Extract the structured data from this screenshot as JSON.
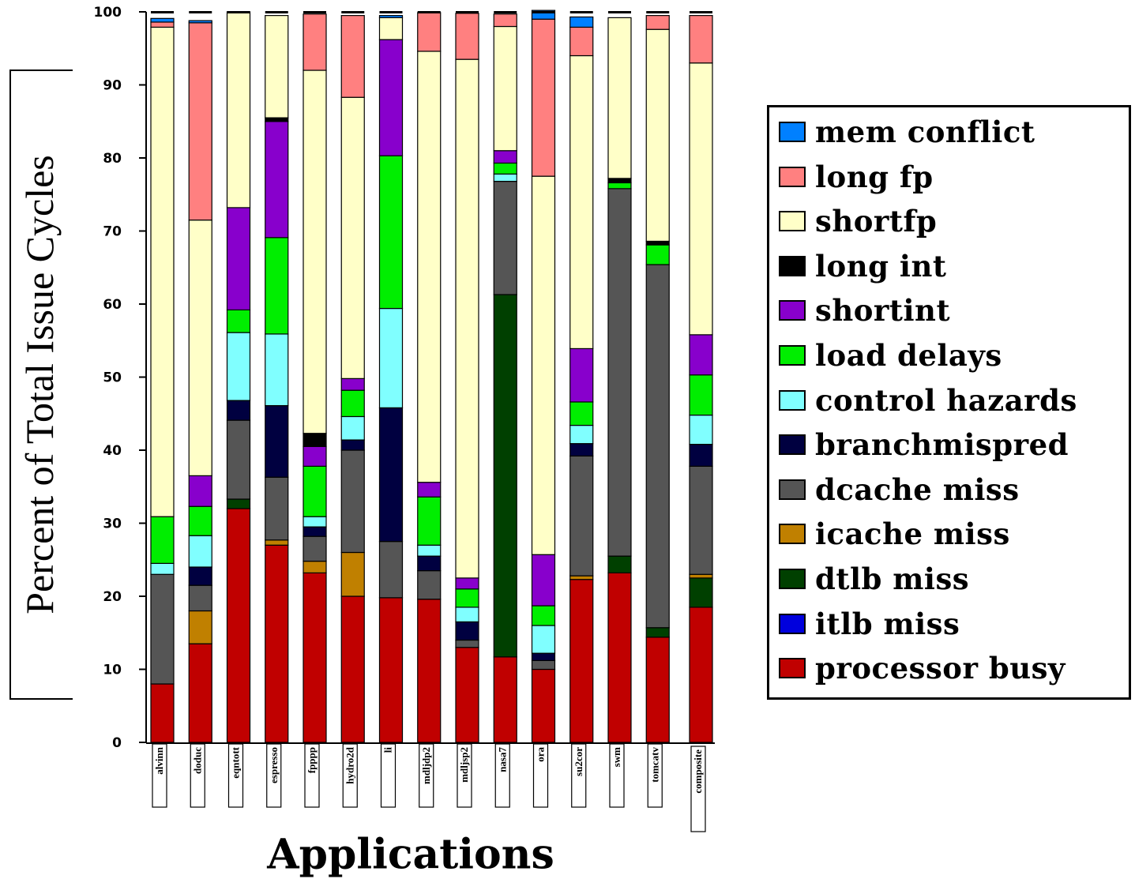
{
  "chart_data": {
    "type": "bar",
    "stacked": true,
    "xlabel": "Applications",
    "ylabel": "Percent of Total Issue Cycles",
    "ylim": [
      0,
      100
    ],
    "yticks": [
      "0",
      "10",
      "20",
      "30",
      "40",
      "50",
      "60",
      "70",
      "80",
      "90",
      "100"
    ],
    "legend_position": "right",
    "categories": [
      "alvinn",
      "doduc",
      "eqntott",
      "espresso",
      "fpppp",
      "hydro2d",
      "li",
      "mdljdp2",
      "mdljsp2",
      "nasa7",
      "ora",
      "su2cor",
      "swm",
      "tomcatv",
      "composite"
    ],
    "series": [
      {
        "name": "processor busy",
        "color": "#c00000",
        "values": [
          8,
          13.5,
          32,
          27,
          23.2,
          20,
          19.8,
          19.6,
          13,
          11.7,
          10,
          22.3,
          23.2,
          14.4,
          18.5
        ]
      },
      {
        "name": "itlb miss",
        "color": "#0000dd",
        "values": [
          0,
          0,
          0,
          0,
          0,
          0,
          0,
          0,
          0,
          0,
          0,
          0,
          0,
          0,
          0
        ]
      },
      {
        "name": "dtlb miss",
        "color": "#004000",
        "values": [
          0,
          0,
          1.3,
          0,
          0,
          0,
          0,
          0,
          0,
          49.6,
          0,
          0,
          2.3,
          1.3,
          4
        ]
      },
      {
        "name": "icache miss",
        "color": "#c08000",
        "values": [
          0,
          4.5,
          0,
          0.7,
          1.6,
          6,
          0,
          0,
          0,
          0,
          0,
          0.5,
          0,
          0,
          0.5
        ]
      },
      {
        "name": "dcache miss",
        "color": "#555555",
        "values": [
          15,
          3.5,
          10.8,
          8.6,
          3.4,
          14,
          7.7,
          3.9,
          1,
          15.5,
          1.2,
          16.4,
          50.3,
          49.7,
          14.8
        ]
      },
      {
        "name": "branchmispred",
        "color": "#000040",
        "values": [
          0,
          2.5,
          2.7,
          9.8,
          1.3,
          1.4,
          18.3,
          2,
          2.5,
          0,
          1,
          1.7,
          0,
          0,
          3
        ]
      },
      {
        "name": "control hazards",
        "color": "#80ffff",
        "values": [
          1.5,
          4.3,
          9.3,
          9.8,
          1.4,
          3.2,
          13.6,
          1.5,
          2,
          1,
          3.8,
          2.5,
          0,
          0,
          4
        ]
      },
      {
        "name": "load delays",
        "color": "#00ee00",
        "values": [
          6.4,
          4,
          3.1,
          13.2,
          6.9,
          3.6,
          20.9,
          6.6,
          2.5,
          1.5,
          2.7,
          3.2,
          0.8,
          2.7,
          5.5
        ]
      },
      {
        "name": "shortint",
        "color": "#8800cc",
        "values": [
          0,
          4.2,
          14,
          15.9,
          2.7,
          1.6,
          15.9,
          2,
          1.5,
          1.7,
          7,
          7.3,
          0,
          0,
          5.5
        ]
      },
      {
        "name": "long int",
        "color": "#000000",
        "values": [
          0,
          0,
          0,
          0.5,
          1.8,
          0,
          0,
          0,
          0,
          0,
          0,
          0,
          0.6,
          0.5,
          0
        ]
      },
      {
        "name": "shortfp",
        "color": "#ffffc8",
        "values": [
          67,
          35,
          26.8,
          14,
          49.7,
          38.5,
          3,
          59,
          71,
          17,
          51.8,
          40.1,
          22,
          29,
          37.2
        ]
      },
      {
        "name": "long fp",
        "color": "#ff8080",
        "values": [
          0.7,
          27,
          0,
          0,
          7.7,
          11.2,
          0,
          5.3,
          6.3,
          1.7,
          21.5,
          3.9,
          0,
          1.9,
          6.5
        ]
      },
      {
        "name": "mem conflict",
        "color": "#0080ff",
        "values": [
          0.5,
          0.3,
          0,
          0,
          0,
          0,
          0.3,
          0,
          0,
          0,
          1.2,
          1.4,
          0,
          0,
          0
        ]
      }
    ]
  }
}
